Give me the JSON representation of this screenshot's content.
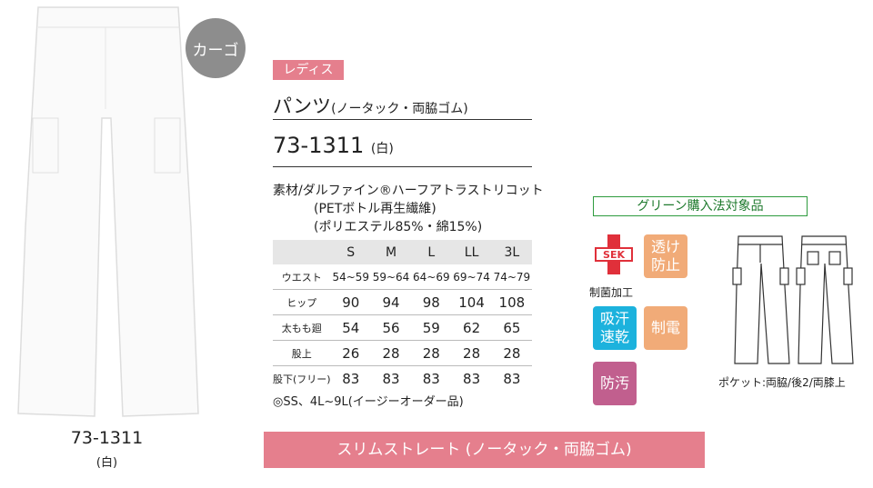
{
  "badge": "カーゴ",
  "photo_caption": {
    "code": "73-1311",
    "color": "(白)"
  },
  "header": {
    "category": "レディス",
    "name": "パンツ",
    "name_note": "(ノータック・両脇ゴム)",
    "code": "73-1311",
    "color": "(白)"
  },
  "material": [
    "素材/ダルファイン®ハーフアトラストリコット",
    "(PETボトル再生繊維)",
    "(ポリエステル85%・綿15%)"
  ],
  "size_table": {
    "columns": [
      "S",
      "M",
      "L",
      "LL",
      "3L"
    ],
    "rows": [
      {
        "label": "ウエスト",
        "cells": [
          "54~59",
          "59~64",
          "64~69",
          "69~74",
          "74~79"
        ]
      },
      {
        "label": "ヒップ",
        "cells": [
          "90",
          "94",
          "98",
          "104",
          "108"
        ]
      },
      {
        "label": "太もも廻",
        "cells": [
          "54",
          "56",
          "59",
          "62",
          "65"
        ]
      },
      {
        "label": "股上",
        "cells": [
          "26",
          "28",
          "28",
          "28",
          "28"
        ]
      },
      {
        "label": "股下(フリー)",
        "cells": [
          "83",
          "83",
          "83",
          "83",
          "83"
        ]
      }
    ]
  },
  "note": "◎SS、4L~9L(イージーオーダー品)",
  "green_label": "グリーン購入法対象品",
  "sek": {
    "mark": "SEK",
    "caption": "制菌加工"
  },
  "features": [
    [
      "透け",
      "防止"
    ],
    [
      "吸汗",
      "速乾"
    ],
    [
      "制電"
    ],
    [
      "防汚"
    ]
  ],
  "pocket_note": "ポケット:両脇/後2/両膝上",
  "footer": "スリムストレート (ノータック・両脇ゴム)"
}
